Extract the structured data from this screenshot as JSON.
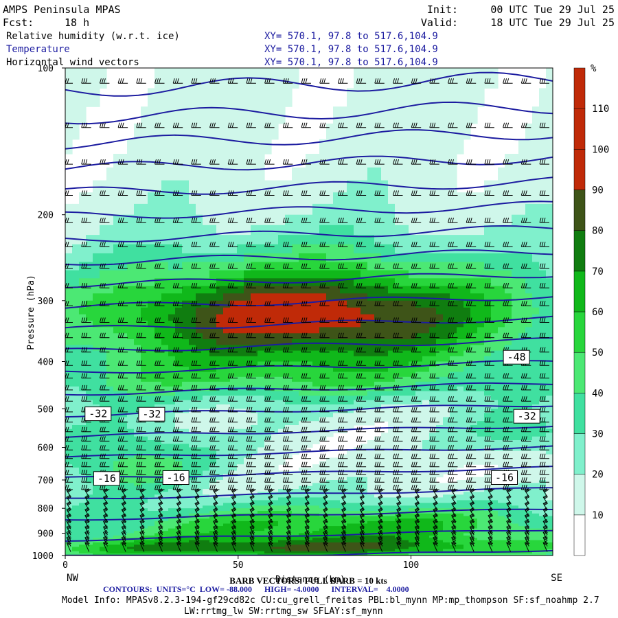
{
  "header": {
    "model_title": "AMPS Peninsula MPAS",
    "fcst_label": "Fcst:",
    "fcst_value": "18 h",
    "init_label": "Init:",
    "init_value": "00 UTC Tue 29 Jul 25",
    "valid_label": "Valid:",
    "valid_value": "18 UTC Tue 29 Jul 25",
    "fields": [
      {
        "name": "Relative humidity (w.r.t. ice)",
        "xy": "XY= 570.1, 97.8 to 517.6,104.9",
        "color": "#000000"
      },
      {
        "name": "Temperature",
        "xy": "XY= 570.1, 97.8 to 517.6,104.9",
        "color": "#1c1ca0"
      },
      {
        "name": "Horizontal wind vectors",
        "xy": "XY= 570.1, 97.8 to 517.6,104.9",
        "color": "#000000"
      }
    ]
  },
  "footer": {
    "barb_note": "BARB VECTORS: FULL BARB = 10 kts",
    "contours_text": "CONTOURS:  UNITS=°C  LOW= -88.000      HIGH= -4.0000      INTERVAL=    4.0000",
    "model_info": "Model Info: MPASv8.2.3-194-gf29cd82c CU:cu_grell_freitas PBL:bl_mynn MP:mp_thompson SF:sf_noahmp 2.7",
    "model_info_2": "LW:rrtmg_lw SW:rrtmg_sw SFLAY:sf_mynn"
  },
  "colors": {
    "temperature_contour": "#1c1ca0",
    "rh_levels": [
      "#ffffff",
      "#cff7ea",
      "#80f0cc",
      "#40e0a0",
      "#4ce874",
      "#28d63c",
      "#10b81a",
      "#107d10",
      "#3e5418",
      "#c02a08"
    ]
  },
  "chart_data": {
    "type": "heatmap",
    "title": "",
    "xlabel": "Distance (km)",
    "ylabel": "Pressure (hPa)",
    "x_range": [
      0,
      141
    ],
    "y_range": [
      100,
      1000
    ],
    "y_scale": "log",
    "x_ticks": [
      0,
      50,
      100
    ],
    "y_ticks": [
      100,
      200,
      300,
      400,
      500,
      600,
      700,
      800,
      900,
      1000
    ],
    "x_end_labels": {
      "left": "NW",
      "right": "SE"
    },
    "colorbar": {
      "unit": "%",
      "boundaries": [
        0,
        10,
        20,
        30,
        40,
        50,
        60,
        70,
        80,
        90,
        100,
        110
      ],
      "tick_labels": [
        "10",
        "20",
        "30",
        "40",
        "50",
        "60",
        "70",
        "80",
        "90",
        "100",
        "110"
      ]
    },
    "temperature_contours": {
      "units": "°C",
      "low": -88,
      "high": -4,
      "interval": 4,
      "labels": [
        {
          "text": "-48",
          "x": 130.5,
          "p": 392
        },
        {
          "text": "-32",
          "x": 9.5,
          "p": 512
        },
        {
          "text": "-32",
          "x": 25,
          "p": 513
        },
        {
          "text": "-32",
          "x": 133.5,
          "p": 518
        },
        {
          "text": "-16",
          "x": 12,
          "p": 695
        },
        {
          "text": "-16",
          "x": 32,
          "p": 692
        },
        {
          "text": "-16",
          "x": 127,
          "p": 692
        }
      ]
    },
    "wind_barbs": {
      "unit": "kts",
      "full_barb": 10
    }
  }
}
